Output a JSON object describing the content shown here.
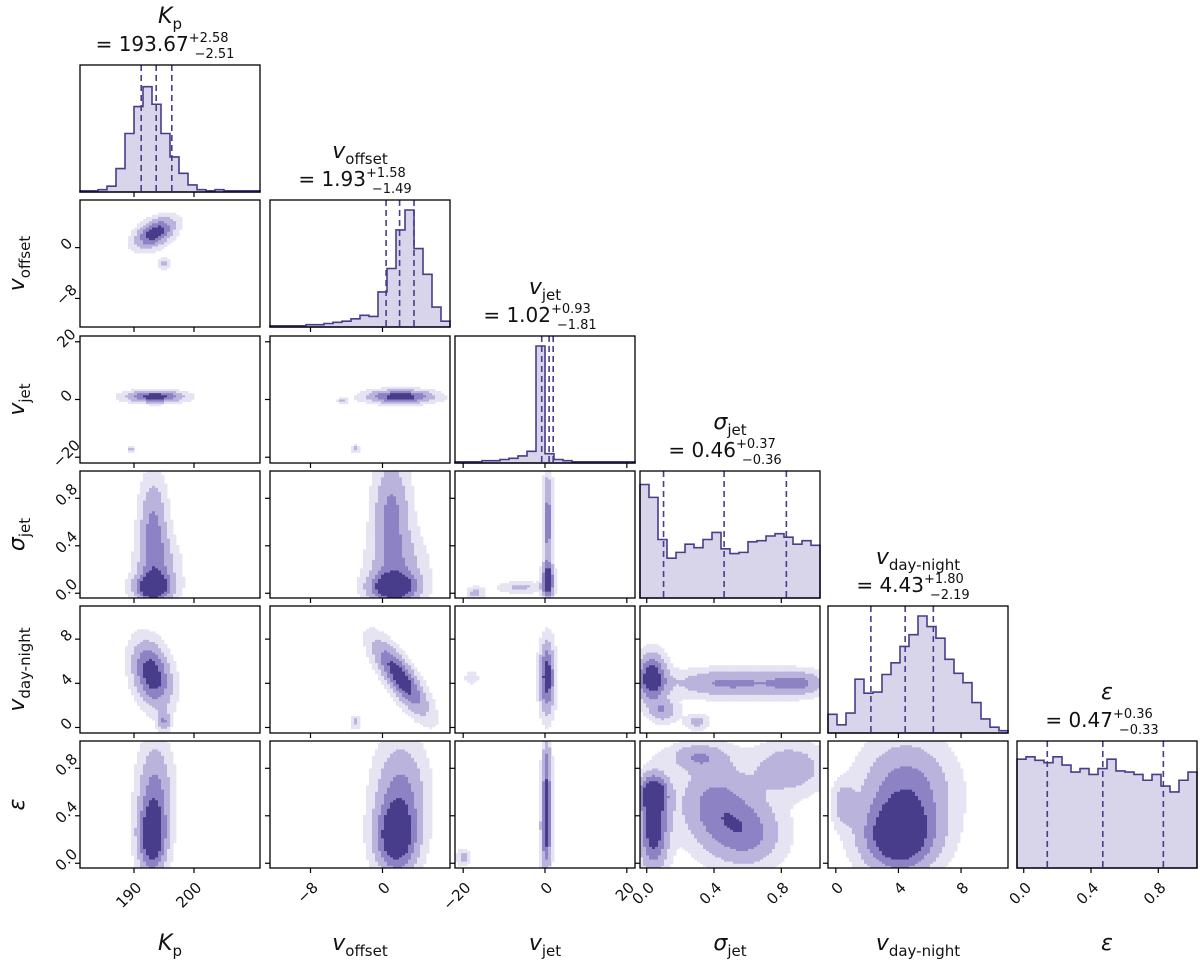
{
  "chart_data": {
    "type": "corner",
    "colors": {
      "line": "#483d8b",
      "fill_1d": "#d8d4ea",
      "levels": [
        "#e6e3f2",
        "#bab3dc",
        "#8d82c4",
        "#483d8b"
      ]
    },
    "parameters": [
      {
        "id": "Kp",
        "symbol": "K",
        "sub": "p",
        "sub_italic": true,
        "median": "193.67",
        "plus": "+2.58",
        "minus": "−2.51",
        "range": [
          181,
          211
        ],
        "ticks": [
          190,
          200
        ],
        "tick_labels": [
          "190",
          "200"
        ],
        "q": [
          191.2,
          193.7,
          196.3
        ]
      },
      {
        "id": "voffset",
        "symbol": "v",
        "sub": "offset",
        "sub_italic": false,
        "median": "1.93",
        "plus": "+1.58",
        "minus": "−1.49",
        "range": [
          -12.5,
          7.5
        ],
        "ticks": [
          -8,
          0
        ],
        "tick_labels": [
          "−8",
          "0"
        ],
        "q": [
          0.4,
          1.9,
          3.5
        ]
      },
      {
        "id": "vjet",
        "symbol": "v",
        "sub": "jet",
        "sub_italic": false,
        "median": "1.02",
        "plus": "+0.93",
        "minus": "−1.81",
        "range": [
          -22,
          22
        ],
        "ticks": [
          -20,
          0,
          20
        ],
        "tick_labels": [
          "−20",
          "0",
          "20"
        ],
        "q": [
          -0.8,
          1.0,
          2.0
        ]
      },
      {
        "id": "sigmajet",
        "symbol": "σ",
        "sub": "jet",
        "sub_italic": false,
        "median": "0.46",
        "plus": "+0.37",
        "minus": "−0.36",
        "range": [
          -0.04,
          1.03
        ],
        "ticks": [
          0.0,
          0.4,
          0.8
        ],
        "tick_labels": [
          "0.0",
          "0.4",
          "0.8"
        ],
        "q": [
          0.1,
          0.46,
          0.83
        ]
      },
      {
        "id": "vdaynight",
        "symbol": "v",
        "sub": "day-night",
        "sub_italic": false,
        "median": "4.43",
        "plus": "+1.80",
        "minus": "−2.19",
        "range": [
          -0.5,
          11
        ],
        "ticks": [
          0,
          4,
          8
        ],
        "tick_labels": [
          "0",
          "4",
          "8"
        ],
        "q": [
          2.24,
          4.43,
          6.23
        ]
      },
      {
        "id": "epsilon",
        "symbol": "ε",
        "sub": "",
        "sub_italic": false,
        "median": "0.47",
        "plus": "+0.36",
        "minus": "−0.33",
        "range": [
          -0.04,
          1.03
        ],
        "ticks": [
          0.0,
          0.4,
          0.8
        ],
        "tick_labels": [
          "0.0",
          "0.4",
          "0.8"
        ],
        "q": [
          0.14,
          0.47,
          0.83
        ]
      }
    ],
    "histograms": [
      [
        0.01,
        0.01,
        0.02,
        0.05,
        0.2,
        0.5,
        0.73,
        0.9,
        0.75,
        0.5,
        0.3,
        0.16,
        0.06,
        0.02,
        0.01,
        0.02,
        0.01,
        0.01,
        0.01,
        0.01
      ],
      [
        0.01,
        0.01,
        0.01,
        0.01,
        0.02,
        0.02,
        0.03,
        0.04,
        0.05,
        0.07,
        0.1,
        0.09,
        0.3,
        0.5,
        0.83,
        1.0,
        0.67,
        0.45,
        0.17,
        0.05
      ],
      [
        0.01,
        0.01,
        0.01,
        0.02,
        0.02,
        0.03,
        0.04,
        0.06,
        0.1,
        1.0,
        0.08,
        0.03,
        0.02,
        0.01,
        0.01,
        0.01,
        0.01,
        0.01,
        0.01,
        0.01
      ],
      [
        0.97,
        0.86,
        0.5,
        0.34,
        0.39,
        0.46,
        0.43,
        0.5,
        0.56,
        0.42,
        0.38,
        0.39,
        0.48,
        0.49,
        0.53,
        0.55,
        0.52,
        0.46,
        0.49,
        0.45
      ],
      [
        0.16,
        0.07,
        0.17,
        0.46,
        0.34,
        0.35,
        0.5,
        0.6,
        0.74,
        0.84,
        1.0,
        0.91,
        0.81,
        0.63,
        0.51,
        0.43,
        0.26,
        0.12,
        0.05,
        0.02
      ],
      [
        0.93,
        0.95,
        0.92,
        0.9,
        0.95,
        0.88,
        0.82,
        0.85,
        0.8,
        0.85,
        0.93,
        0.83,
        0.82,
        0.8,
        0.75,
        0.8,
        0.7,
        0.65,
        0.75,
        0.82
      ]
    ],
    "blobs": {
      "1,0": [
        {
          "c": [
            193.5,
            2.3
          ],
          "s": [
            2.2,
            1.6
          ],
          "r": 0.45
        },
        {
          "c": [
            195,
            -2.5
          ],
          "s": [
            0.6,
            0.6
          ],
          "r": 0,
          "m": 0.4
        }
      ],
      "2,0": [
        {
          "c": [
            193.5,
            1
          ],
          "s": [
            3.2,
            1.4
          ],
          "r": 0
        },
        {
          "c": [
            189.5,
            -17.5
          ],
          "s": [
            0.4,
            0.8
          ],
          "r": 0,
          "m": 0.4
        }
      ],
      "3,0": [
        {
          "c": [
            193.2,
            0.55
          ],
          "s": [
            1.6,
            0.3
          ],
          "r": 0,
          "m": 0.6
        },
        {
          "c": [
            193,
            0.05
          ],
          "s": [
            2,
            0.07
          ],
          "r": 0
        },
        {
          "c": [
            194,
            0.18
          ],
          "s": [
            2.5,
            0.2
          ],
          "r": 0,
          "m": 0.45
        }
      ],
      "4,0": [
        {
          "c": [
            193,
            4.8
          ],
          "s": [
            2.2,
            2
          ],
          "r": -0.3
        },
        {
          "c": [
            195,
            0.5
          ],
          "s": [
            0.7,
            0.6
          ],
          "r": 0,
          "m": 0.5
        }
      ],
      "5,0": [
        {
          "c": [
            193,
            0.2
          ],
          "s": [
            1.6,
            0.2
          ],
          "r": 0
        },
        {
          "c": [
            193.5,
            0.6
          ],
          "s": [
            2,
            0.3
          ],
          "r": 0,
          "m": 0.6
        }
      ],
      "2,1": [
        {
          "c": [
            2,
            1
          ],
          "s": [
            2.5,
            1.6
          ],
          "r": 0
        },
        {
          "c": [
            -4.5,
            -0.5
          ],
          "s": [
            0.35,
            0.8
          ],
          "r": 0,
          "m": 0.4
        },
        {
          "c": [
            -3,
            -17
          ],
          "s": [
            0.4,
            0.9
          ],
          "r": 0,
          "m": 0.4
        }
      ],
      "3,1": [
        {
          "c": [
            1,
            0.7
          ],
          "s": [
            1.4,
            0.3
          ],
          "r": 0,
          "m": 0.6
        },
        {
          "c": [
            1.2,
            0.05
          ],
          "s": [
            1.8,
            0.08
          ],
          "r": 0
        },
        {
          "c": [
            1.6,
            0.2
          ],
          "s": [
            2.2,
            0.22
          ],
          "r": 0,
          "m": 0.45
        }
      ],
      "4,1": [
        {
          "c": [
            2,
            4.5
          ],
          "s": [
            2,
            2.2
          ],
          "r": -0.8
        },
        {
          "c": [
            -3,
            0.5
          ],
          "s": [
            0.4,
            0.4
          ],
          "r": 0,
          "m": 0.4
        }
      ],
      "5,1": [
        {
          "c": [
            1.5,
            0.2
          ],
          "s": [
            1.6,
            0.2
          ],
          "r": 0
        },
        {
          "c": [
            2,
            0.6
          ],
          "s": [
            2,
            0.3
          ],
          "r": 0,
          "m": 0.6
        }
      ],
      "3,2": [
        {
          "c": [
            0.7,
            0.6
          ],
          "s": [
            0.8,
            0.3
          ],
          "r": 0,
          "m": 0.7
        },
        {
          "c": [
            0.7,
            0.1
          ],
          "s": [
            1,
            0.1
          ],
          "r": 0
        },
        {
          "c": [
            -17,
            0
          ],
          "s": [
            1.5,
            0.04
          ],
          "r": 0,
          "m": 0.4
        },
        {
          "c": [
            -6,
            0.05
          ],
          "s": [
            4,
            0.035
          ],
          "r": 0,
          "m": 0.35
        }
      ],
      "4,2": [
        {
          "c": [
            0.5,
            4.5
          ],
          "s": [
            1.3,
            2.2
          ],
          "r": 0
        },
        {
          "c": [
            -18,
            4.5
          ],
          "s": [
            1.2,
            0.4
          ],
          "r": 0,
          "m": 0.3
        }
      ],
      "5,2": [
        {
          "c": [
            0.3,
            0.3
          ],
          "s": [
            0.9,
            0.25
          ],
          "r": 0
        },
        {
          "c": [
            0.4,
            0.8
          ],
          "s": [
            0.8,
            0.2
          ],
          "r": 0,
          "m": 0.6
        },
        {
          "c": [
            -20,
            0.05
          ],
          "s": [
            1.2,
            0.05
          ],
          "r": 0,
          "m": 0.4
        }
      ],
      "4,3": [
        {
          "c": [
            0.03,
            4.5
          ],
          "s": [
            0.06,
            1.5
          ],
          "r": 0
        },
        {
          "c": [
            0.5,
            4
          ],
          "s": [
            0.25,
            0.9
          ],
          "r": 0,
          "m": 0.6
        },
        {
          "c": [
            0.9,
            4
          ],
          "s": [
            0.12,
            0.8
          ],
          "r": 0,
          "m": 0.5
        },
        {
          "c": [
            0.1,
            1.5
          ],
          "s": [
            0.06,
            0.7
          ],
          "r": 0,
          "m": 0.5
        },
        {
          "c": [
            0.3,
            0.5
          ],
          "s": [
            0.05,
            0.5
          ],
          "r": 0,
          "m": 0.4
        }
      ],
      "5,3": [
        {
          "c": [
            0.04,
            0.3
          ],
          "s": [
            0.06,
            0.25
          ],
          "r": 0
        },
        {
          "c": [
            0.04,
            0.6
          ],
          "s": [
            0.06,
            0.1
          ],
          "r": 0,
          "m": 0.8
        },
        {
          "c": [
            0.4,
            0.5
          ],
          "s": [
            0.15,
            0.25
          ],
          "r": 0,
          "m": 0.6
        },
        {
          "c": [
            0.6,
            0.25
          ],
          "s": [
            0.15,
            0.2
          ],
          "r": 0,
          "m": 0.6
        },
        {
          "c": [
            0.85,
            0.8
          ],
          "s": [
            0.15,
            0.15
          ],
          "r": 0,
          "m": 0.5
        },
        {
          "c": [
            0.3,
            0.9
          ],
          "s": [
            0.12,
            0.08
          ],
          "r": 0,
          "m": 0.45
        }
      ],
      "5,4": [
        {
          "c": [
            4,
            0.2
          ],
          "s": [
            1.6,
            0.2
          ],
          "r": 0
        },
        {
          "c": [
            4.5,
            0.6
          ],
          "s": [
            2,
            0.3
          ],
          "r": 0,
          "m": 0.7
        },
        {
          "c": [
            0.5,
            0.5
          ],
          "s": [
            0.5,
            0.12
          ],
          "r": 0,
          "m": 0.4
        }
      ]
    }
  }
}
